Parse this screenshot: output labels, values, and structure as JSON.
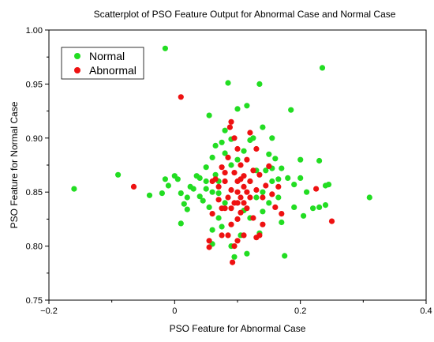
{
  "chart_data": {
    "type": "scatter",
    "title": "Scatterplot of PSO Feature Output for Abnormal Case and Normal Case",
    "xlabel": "PSO Feature for Abnormal Case",
    "ylabel": "PSO Feature for Normal Case",
    "xlim": [
      -0.2,
      0.4
    ],
    "ylim": [
      0.75,
      1.0
    ],
    "x_ticks": [
      -0.2,
      0,
      0.2,
      0.4
    ],
    "x_tick_labels": [
      "−0.2",
      "0",
      "0.2",
      "0.4"
    ],
    "y_ticks": [
      0.75,
      0.8,
      0.85,
      0.9,
      0.95,
      1.0
    ],
    "y_tick_labels": [
      "0.75",
      "0.80",
      "0.85",
      "0.90",
      "0.95",
      "1.00"
    ],
    "grid": false,
    "legend_position": "top-left",
    "series": [
      {
        "name": "Normal",
        "color": "#22dd22",
        "points": [
          [
            -0.16,
            0.853
          ],
          [
            -0.09,
            0.866
          ],
          [
            -0.04,
            0.847
          ],
          [
            -0.02,
            0.849
          ],
          [
            -0.015,
            0.983
          ],
          [
            -0.015,
            0.862
          ],
          [
            -0.01,
            0.856
          ],
          [
            0.0,
            0.865
          ],
          [
            0.005,
            0.862
          ],
          [
            0.01,
            0.849
          ],
          [
            0.01,
            0.821
          ],
          [
            0.015,
            0.839
          ],
          [
            0.02,
            0.834
          ],
          [
            0.02,
            0.845
          ],
          [
            0.025,
            0.855
          ],
          [
            0.03,
            0.853
          ],
          [
            0.035,
            0.865
          ],
          [
            0.04,
            0.863
          ],
          [
            0.04,
            0.846
          ],
          [
            0.045,
            0.842
          ],
          [
            0.05,
            0.873
          ],
          [
            0.05,
            0.853
          ],
          [
            0.055,
            0.836
          ],
          [
            0.055,
            0.921
          ],
          [
            0.06,
            0.882
          ],
          [
            0.06,
            0.815
          ],
          [
            0.06,
            0.802
          ],
          [
            0.065,
            0.893
          ],
          [
            0.065,
            0.866
          ],
          [
            0.07,
            0.826
          ],
          [
            0.07,
            0.849
          ],
          [
            0.075,
            0.896
          ],
          [
            0.075,
            0.818
          ],
          [
            0.08,
            0.907
          ],
          [
            0.08,
            0.886
          ],
          [
            0.085,
            0.951
          ],
          [
            0.09,
            0.899
          ],
          [
            0.09,
            0.8
          ],
          [
            0.095,
            0.79
          ],
          [
            0.1,
            0.88
          ],
          [
            0.1,
            0.927
          ],
          [
            0.105,
            0.81
          ],
          [
            0.11,
            0.888
          ],
          [
            0.115,
            0.93
          ],
          [
            0.115,
            0.793
          ],
          [
            0.12,
            0.898
          ],
          [
            0.12,
            0.826
          ],
          [
            0.125,
            0.9
          ],
          [
            0.13,
            0.845
          ],
          [
            0.135,
            0.95
          ],
          [
            0.135,
            0.812
          ],
          [
            0.14,
            0.91
          ],
          [
            0.14,
            0.832
          ],
          [
            0.145,
            0.87
          ],
          [
            0.15,
            0.885
          ],
          [
            0.15,
            0.84
          ],
          [
            0.155,
            0.9
          ],
          [
            0.155,
            0.86
          ],
          [
            0.16,
            0.881
          ],
          [
            0.165,
            0.862
          ],
          [
            0.165,
            0.845
          ],
          [
            0.17,
            0.872
          ],
          [
            0.17,
            0.822
          ],
          [
            0.175,
            0.791
          ],
          [
            0.18,
            0.863
          ],
          [
            0.185,
            0.926
          ],
          [
            0.19,
            0.857
          ],
          [
            0.19,
            0.836
          ],
          [
            0.2,
            0.863
          ],
          [
            0.2,
            0.88
          ],
          [
            0.205,
            0.828
          ],
          [
            0.21,
            0.85
          ],
          [
            0.22,
            0.835
          ],
          [
            0.23,
            0.879
          ],
          [
            0.23,
            0.836
          ],
          [
            0.235,
            0.965
          ],
          [
            0.24,
            0.856
          ],
          [
            0.24,
            0.838
          ],
          [
            0.245,
            0.857
          ],
          [
            0.31,
            0.845
          ],
          [
            0.07,
            0.86
          ],
          [
            0.08,
            0.84
          ],
          [
            0.12,
            0.86
          ],
          [
            0.13,
            0.87
          ],
          [
            0.06,
            0.85
          ],
          [
            0.09,
            0.875
          ],
          [
            0.11,
            0.833
          ],
          [
            0.14,
            0.85
          ],
          [
            0.05,
            0.86
          ],
          [
            0.155,
            0.872
          ]
        ]
      },
      {
        "name": "Abnormal",
        "color": "#ee1111",
        "points": [
          [
            -0.065,
            0.855
          ],
          [
            0.01,
            0.938
          ],
          [
            0.055,
            0.805
          ],
          [
            0.055,
            0.799
          ],
          [
            0.06,
            0.83
          ],
          [
            0.065,
            0.862
          ],
          [
            0.07,
            0.843
          ],
          [
            0.075,
            0.81
          ],
          [
            0.075,
            0.873
          ],
          [
            0.08,
            0.86
          ],
          [
            0.08,
            0.835
          ],
          [
            0.085,
            0.81
          ],
          [
            0.085,
            0.882
          ],
          [
            0.088,
            0.91
          ],
          [
            0.09,
            0.915
          ],
          [
            0.09,
            0.852
          ],
          [
            0.09,
            0.82
          ],
          [
            0.092,
            0.785
          ],
          [
            0.095,
            0.868
          ],
          [
            0.095,
            0.84
          ],
          [
            0.1,
            0.89
          ],
          [
            0.1,
            0.85
          ],
          [
            0.1,
            0.825
          ],
          [
            0.1,
            0.86
          ],
          [
            0.105,
            0.875
          ],
          [
            0.105,
            0.845
          ],
          [
            0.105,
            0.831
          ],
          [
            0.11,
            0.865
          ],
          [
            0.11,
            0.855
          ],
          [
            0.11,
            0.84
          ],
          [
            0.115,
            0.88
          ],
          [
            0.115,
            0.835
          ],
          [
            0.12,
            0.86
          ],
          [
            0.12,
            0.845
          ],
          [
            0.125,
            0.87
          ],
          [
            0.125,
            0.826
          ],
          [
            0.13,
            0.89
          ],
          [
            0.13,
            0.852
          ],
          [
            0.135,
            0.866
          ],
          [
            0.14,
            0.845
          ],
          [
            0.14,
            0.82
          ],
          [
            0.145,
            0.856
          ],
          [
            0.15,
            0.874
          ],
          [
            0.155,
            0.848
          ],
          [
            0.16,
            0.836
          ],
          [
            0.165,
            0.855
          ],
          [
            0.17,
            0.83
          ],
          [
            0.095,
            0.9
          ],
          [
            0.085,
            0.845
          ],
          [
            0.095,
            0.8
          ],
          [
            0.12,
            0.905
          ],
          [
            0.07,
            0.855
          ],
          [
            0.075,
            0.835
          ],
          [
            0.11,
            0.81
          ],
          [
            0.13,
            0.808
          ],
          [
            0.135,
            0.81
          ],
          [
            0.1,
            0.805
          ],
          [
            0.08,
            0.868
          ],
          [
            0.06,
            0.86
          ],
          [
            0.225,
            0.853
          ],
          [
            0.25,
            0.823
          ],
          [
            0.09,
            0.835
          ],
          [
            0.105,
            0.862
          ],
          [
            0.115,
            0.85
          ],
          [
            0.1,
            0.84
          ]
        ]
      }
    ]
  }
}
